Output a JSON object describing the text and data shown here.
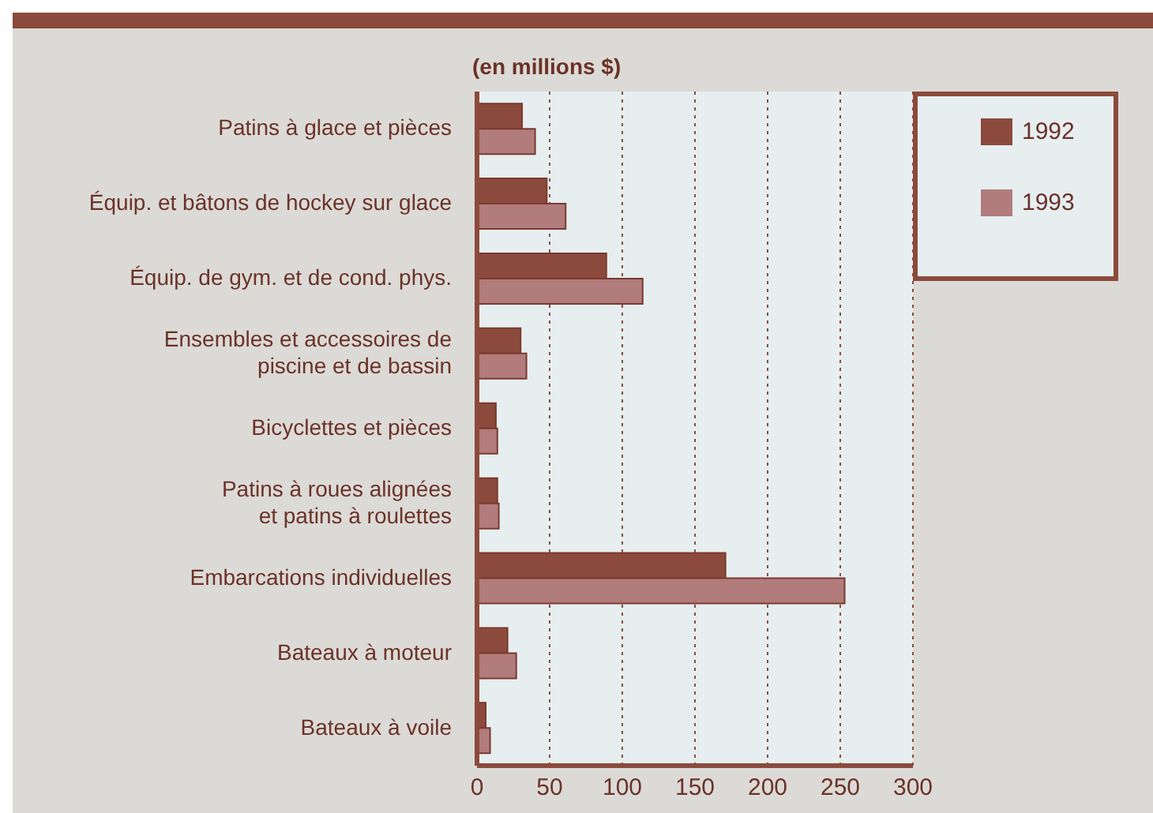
{
  "chart_data": {
    "type": "bar",
    "orientation": "horizontal",
    "subtitle": "(en millions $)",
    "categories": [
      "Patins à glace et pièces",
      "Équip. et bâtons de hockey sur glace",
      "Équip. de gym. et de cond. phys.",
      "Ensembles et accessoires de\npiscine et de bassin",
      "Bicyclettes et pièces",
      "Patins à roues alignées\net patins à roulettes",
      "Embarcations individuelles",
      "Bateaux à moteur",
      "Bateaux à voile"
    ],
    "series": [
      {
        "name": "1992",
        "color": "#8b4a3c",
        "values": [
          31,
          48,
          89,
          30,
          13,
          14,
          171,
          21,
          6
        ]
      },
      {
        "name": "1993",
        "color": "#b27c7c",
        "values": [
          40,
          61,
          114,
          34,
          14,
          15,
          253,
          27,
          9
        ]
      }
    ],
    "xlim": [
      0,
      300
    ],
    "xticks": [
      0,
      50,
      100,
      150,
      200,
      250,
      300
    ],
    "grid": "x",
    "legend": "top right"
  }
}
